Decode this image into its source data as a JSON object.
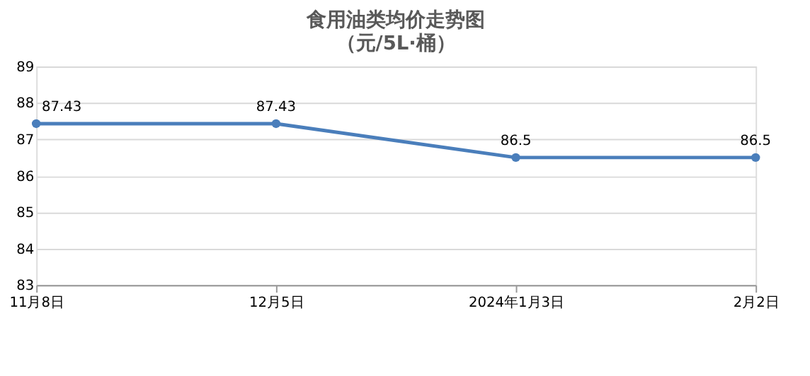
{
  "chart_data": {
    "type": "line",
    "title": "食用油类均价走势图",
    "subtitle": "（元/5L·桶）",
    "categories": [
      "11月8日",
      "12月5日",
      "2024年1月3日",
      "2月2日"
    ],
    "series": [
      {
        "color": "#4a7ebb",
        "values": [
          87.43,
          87.43,
          86.5,
          86.5
        ]
      }
    ],
    "ylim": [
      83,
      89
    ],
    "yticks": [
      83,
      84,
      85,
      86,
      87,
      88,
      89
    ],
    "grid": "y",
    "marker": "circle",
    "line_style": "solid",
    "data_labels": true,
    "legend": false
  }
}
